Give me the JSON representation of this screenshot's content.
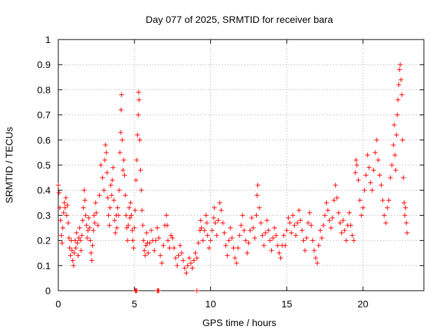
{
  "chart_data": {
    "type": "scatter",
    "title": "Day 077 of 2025, SRMTID for receiver bara",
    "xlabel": "GPS time / hours",
    "ylabel": "SRMTID / TECUs",
    "xlim": [
      0,
      24
    ],
    "ylim": [
      0,
      1
    ],
    "xticks": [
      0,
      5,
      10,
      15,
      20
    ],
    "xtick_labels": [
      "0",
      "5",
      "10",
      "15",
      "20"
    ],
    "yticks": [
      0,
      0.1,
      0.2,
      0.3,
      0.4,
      0.5,
      0.6,
      0.7,
      0.8,
      0.9,
      1
    ],
    "ytick_labels": [
      "0",
      "0.1",
      "0.2",
      "0.3",
      "0.4",
      "0.5",
      "0.6",
      "0.7",
      "0.8",
      "0.9",
      "1"
    ],
    "grid": true,
    "marker": "+",
    "color": "#ff0000",
    "series": [
      {
        "name": "SRMTID",
        "points": [
          [
            0.0,
            0.42
          ],
          [
            0.05,
            0.39
          ],
          [
            0.1,
            0.33
          ],
          [
            0.15,
            0.28
          ],
          [
            0.2,
            0.22
          ],
          [
            0.25,
            0.19
          ],
          [
            0.3,
            0.25
          ],
          [
            0.35,
            0.31
          ],
          [
            0.4,
            0.35
          ],
          [
            0.45,
            0.33
          ],
          [
            0.5,
            0.37
          ],
          [
            0.55,
            0.3
          ],
          [
            0.6,
            0.34
          ],
          [
            0.65,
            0.27
          ],
          [
            0.7,
            0.21
          ],
          [
            0.75,
            0.17
          ],
          [
            0.8,
            0.14
          ],
          [
            0.85,
            0.2
          ],
          [
            0.9,
            0.16
          ],
          [
            0.95,
            0.12
          ],
          [
            1.0,
            0.1
          ],
          [
            1.05,
            0.15
          ],
          [
            1.1,
            0.2
          ],
          [
            1.15,
            0.17
          ],
          [
            1.2,
            0.23
          ],
          [
            1.25,
            0.19
          ],
          [
            1.3,
            0.14
          ],
          [
            1.35,
            0.21
          ],
          [
            1.4,
            0.25
          ],
          [
            1.45,
            0.2
          ],
          [
            1.5,
            0.16
          ],
          [
            1.55,
            0.22
          ],
          [
            1.6,
            0.28
          ],
          [
            1.65,
            0.33
          ],
          [
            1.7,
            0.4
          ],
          [
            1.75,
            0.36
          ],
          [
            1.8,
            0.3
          ],
          [
            1.85,
            0.26
          ],
          [
            1.9,
            0.21
          ],
          [
            1.95,
            0.24
          ],
          [
            2.0,
            0.29
          ],
          [
            2.05,
            0.25
          ],
          [
            2.1,
            0.2
          ],
          [
            2.15,
            0.15
          ],
          [
            2.2,
            0.12
          ],
          [
            2.25,
            0.18
          ],
          [
            2.3,
            0.24
          ],
          [
            2.35,
            0.3
          ],
          [
            2.4,
            0.27
          ],
          [
            2.45,
            0.35
          ],
          [
            2.5,
            0.31
          ],
          [
            2.6,
            0.26
          ],
          [
            2.7,
            0.38
          ],
          [
            2.8,
            0.5
          ],
          [
            2.9,
            0.45
          ],
          [
            3.0,
            0.4
          ],
          [
            3.05,
            0.52
          ],
          [
            3.1,
            0.58
          ],
          [
            3.15,
            0.55
          ],
          [
            3.2,
            0.47
          ],
          [
            3.25,
            0.37
          ],
          [
            3.3,
            0.3
          ],
          [
            3.35,
            0.26
          ],
          [
            3.4,
            0.33
          ],
          [
            3.45,
            0.42
          ],
          [
            3.5,
            0.38
          ],
          [
            3.55,
            0.44
          ],
          [
            3.6,
            0.49
          ],
          [
            3.65,
            0.36
          ],
          [
            3.7,
            0.28
          ],
          [
            3.75,
            0.23
          ],
          [
            3.8,
            0.3
          ],
          [
            3.85,
            0.25
          ],
          [
            3.9,
            0.33
          ],
          [
            3.95,
            0.3
          ],
          [
            4.0,
            0.4
          ],
          [
            4.05,
            0.55
          ],
          [
            4.1,
            0.63
          ],
          [
            4.12,
            0.72
          ],
          [
            4.15,
            0.78
          ],
          [
            4.2,
            0.6
          ],
          [
            4.25,
            0.48
          ],
          [
            4.3,
            0.52
          ],
          [
            4.35,
            0.46
          ],
          [
            4.4,
            0.38
          ],
          [
            4.45,
            0.3
          ],
          [
            4.5,
            0.25
          ],
          [
            4.55,
            0.2
          ],
          [
            4.6,
            0.26
          ],
          [
            4.65,
            0.33
          ],
          [
            4.7,
            0.29
          ],
          [
            4.75,
            0.35
          ],
          [
            4.8,
            0.3
          ],
          [
            4.85,
            0.24
          ],
          [
            4.9,
            0.2
          ],
          [
            4.95,
            0.17
          ],
          [
            5.0,
            0.25
          ],
          [
            5.05,
            0.32
          ],
          [
            5.1,
            0.44
          ],
          [
            5.15,
            0.52
          ],
          [
            5.2,
            0.62
          ],
          [
            5.25,
            0.7
          ],
          [
            5.28,
            0.79
          ],
          [
            5.3,
            0.76
          ],
          [
            5.35,
            0.6
          ],
          [
            5.4,
            0.48
          ],
          [
            5.45,
            0.4
          ],
          [
            5.5,
            0.32
          ],
          [
            5.55,
            0.26
          ],
          [
            5.6,
            0.2
          ],
          [
            5.65,
            0.16
          ],
          [
            5.7,
            0.14
          ],
          [
            5.75,
            0.18
          ],
          [
            5.8,
            0.23
          ],
          [
            5.85,
            0.19
          ],
          [
            5.9,
            0.15
          ],
          [
            6.0,
            0.19
          ],
          [
            6.1,
            0.24
          ],
          [
            6.2,
            0.2
          ],
          [
            6.3,
            0.16
          ],
          [
            6.4,
            0.2
          ],
          [
            6.5,
            0.25
          ],
          [
            6.6,
            0.21
          ],
          [
            6.7,
            0.14
          ],
          [
            6.8,
            0.11
          ],
          [
            6.9,
            0.18
          ],
          [
            7.0,
            0.26
          ],
          [
            7.1,
            0.3
          ],
          [
            7.15,
            0.26
          ],
          [
            7.2,
            0.2
          ],
          [
            7.3,
            0.17
          ],
          [
            7.4,
            0.22
          ],
          [
            7.5,
            0.21
          ],
          [
            7.6,
            0.17
          ],
          [
            7.7,
            0.13
          ],
          [
            7.8,
            0.1
          ],
          [
            7.9,
            0.14
          ],
          [
            8.0,
            0.18
          ],
          [
            8.1,
            0.15
          ],
          [
            8.2,
            0.12
          ],
          [
            8.3,
            0.09
          ],
          [
            8.4,
            0.07
          ],
          [
            8.5,
            0.1
          ],
          [
            8.6,
            0.13
          ],
          [
            8.7,
            0.11
          ],
          [
            8.8,
            0.09
          ],
          [
            8.9,
            0.12
          ],
          [
            9.0,
            0.15
          ],
          [
            9.1,
            0.13
          ],
          [
            9.2,
            0.19
          ],
          [
            9.3,
            0.24
          ],
          [
            9.35,
            0.28
          ],
          [
            9.4,
            0.25
          ],
          [
            9.5,
            0.2
          ],
          [
            9.6,
            0.24
          ],
          [
            9.7,
            0.3
          ],
          [
            9.75,
            0.27
          ],
          [
            9.8,
            0.22
          ],
          [
            9.9,
            0.17
          ],
          [
            10.0,
            0.2
          ],
          [
            10.1,
            0.24
          ],
          [
            10.2,
            0.29
          ],
          [
            10.25,
            0.33
          ],
          [
            10.3,
            0.27
          ],
          [
            10.4,
            0.22
          ],
          [
            10.5,
            0.28
          ],
          [
            10.6,
            0.35
          ],
          [
            10.7,
            0.32
          ],
          [
            10.8,
            0.27
          ],
          [
            10.9,
            0.23
          ],
          [
            11.0,
            0.18
          ],
          [
            11.1,
            0.14
          ],
          [
            11.2,
            0.2
          ],
          [
            11.3,
            0.25
          ],
          [
            11.4,
            0.21
          ],
          [
            11.5,
            0.17
          ],
          [
            11.6,
            0.13
          ],
          [
            11.7,
            0.11
          ],
          [
            11.8,
            0.17
          ],
          [
            11.9,
            0.22
          ],
          [
            12.0,
            0.26
          ],
          [
            12.1,
            0.3
          ],
          [
            12.2,
            0.24
          ],
          [
            12.3,
            0.2
          ],
          [
            12.4,
            0.15
          ],
          [
            12.5,
            0.19
          ],
          [
            12.6,
            0.24
          ],
          [
            12.7,
            0.29
          ],
          [
            12.8,
            0.25
          ],
          [
            12.9,
            0.21
          ],
          [
            13.0,
            0.3
          ],
          [
            13.05,
            0.38
          ],
          [
            13.1,
            0.42
          ],
          [
            13.2,
            0.33
          ],
          [
            13.3,
            0.27
          ],
          [
            13.4,
            0.22
          ],
          [
            13.5,
            0.18
          ],
          [
            13.6,
            0.23
          ],
          [
            13.7,
            0.28
          ],
          [
            13.8,
            0.24
          ],
          [
            13.9,
            0.2
          ],
          [
            14.0,
            0.16
          ],
          [
            14.1,
            0.21
          ],
          [
            14.2,
            0.25
          ],
          [
            14.3,
            0.22
          ],
          [
            14.4,
            0.18
          ],
          [
            14.5,
            0.15
          ],
          [
            14.6,
            0.13
          ],
          [
            14.7,
            0.18
          ],
          [
            14.8,
            0.22
          ],
          [
            14.9,
            0.18
          ],
          [
            15.0,
            0.24
          ],
          [
            15.1,
            0.29
          ],
          [
            15.2,
            0.27
          ],
          [
            15.3,
            0.23
          ],
          [
            15.4,
            0.3
          ],
          [
            15.5,
            0.26
          ],
          [
            15.6,
            0.22
          ],
          [
            15.7,
            0.27
          ],
          [
            15.8,
            0.32
          ],
          [
            15.9,
            0.28
          ],
          [
            16.0,
            0.24
          ],
          [
            16.1,
            0.2
          ],
          [
            16.2,
            0.16
          ],
          [
            16.3,
            0.21
          ],
          [
            16.4,
            0.27
          ],
          [
            16.5,
            0.31
          ],
          [
            16.6,
            0.26
          ],
          [
            16.7,
            0.2
          ],
          [
            16.8,
            0.16
          ],
          [
            16.9,
            0.13
          ],
          [
            17.0,
            0.11
          ],
          [
            17.1,
            0.18
          ],
          [
            17.2,
            0.24
          ],
          [
            17.3,
            0.21
          ],
          [
            17.4,
            0.26
          ],
          [
            17.5,
            0.3
          ],
          [
            17.6,
            0.35
          ],
          [
            17.7,
            0.32
          ],
          [
            17.8,
            0.28
          ],
          [
            17.9,
            0.25
          ],
          [
            18.0,
            0.29
          ],
          [
            18.1,
            0.36
          ],
          [
            18.2,
            0.42
          ],
          [
            18.3,
            0.37
          ],
          [
            18.4,
            0.31
          ],
          [
            18.5,
            0.27
          ],
          [
            18.6,
            0.23
          ],
          [
            18.7,
            0.28
          ],
          [
            18.8,
            0.24
          ],
          [
            18.9,
            0.2
          ],
          [
            19.0,
            0.26
          ],
          [
            19.1,
            0.31
          ],
          [
            19.2,
            0.26
          ],
          [
            19.3,
            0.22
          ],
          [
            19.4,
            0.2
          ],
          [
            19.5,
            0.47
          ],
          [
            19.55,
            0.52
          ],
          [
            19.6,
            0.5
          ],
          [
            19.7,
            0.44
          ],
          [
            19.8,
            0.36
          ],
          [
            19.9,
            0.3
          ],
          [
            20.0,
            0.33
          ],
          [
            20.1,
            0.4
          ],
          [
            20.2,
            0.46
          ],
          [
            20.3,
            0.54
          ],
          [
            20.4,
            0.49
          ],
          [
            20.5,
            0.43
          ],
          [
            20.6,
            0.4
          ],
          [
            20.7,
            0.48
          ],
          [
            20.8,
            0.55
          ],
          [
            20.9,
            0.6
          ],
          [
            21.0,
            0.52
          ],
          [
            21.1,
            0.46
          ],
          [
            21.2,
            0.42
          ],
          [
            21.3,
            0.36
          ],
          [
            21.4,
            0.3
          ],
          [
            21.5,
            0.27
          ],
          [
            21.6,
            0.33
          ],
          [
            21.7,
            0.36
          ],
          [
            21.8,
            0.45
          ],
          [
            21.9,
            0.5
          ],
          [
            22.0,
            0.58
          ],
          [
            22.05,
            0.66
          ],
          [
            22.1,
            0.54
          ],
          [
            22.15,
            0.48
          ],
          [
            22.2,
            0.62
          ],
          [
            22.25,
            0.7
          ],
          [
            22.3,
            0.76
          ],
          [
            22.35,
            0.82
          ],
          [
            22.4,
            0.88
          ],
          [
            22.45,
            0.9
          ],
          [
            22.5,
            0.84
          ],
          [
            22.55,
            0.78
          ],
          [
            22.6,
            0.6
          ],
          [
            22.65,
            0.45
          ],
          [
            22.7,
            0.35
          ],
          [
            22.75,
            0.3
          ],
          [
            22.8,
            0.33
          ],
          [
            22.85,
            0.27
          ],
          [
            22.9,
            0.23
          ]
        ]
      }
    ],
    "zero_points": [
      [
        5.05,
        0.0
      ],
      [
        5.1,
        0.0
      ],
      [
        5.15,
        0.0
      ],
      [
        6.5,
        0.0
      ],
      [
        6.55,
        0.0
      ],
      [
        6.6,
        0.0
      ],
      [
        9.1,
        0.0
      ]
    ]
  }
}
